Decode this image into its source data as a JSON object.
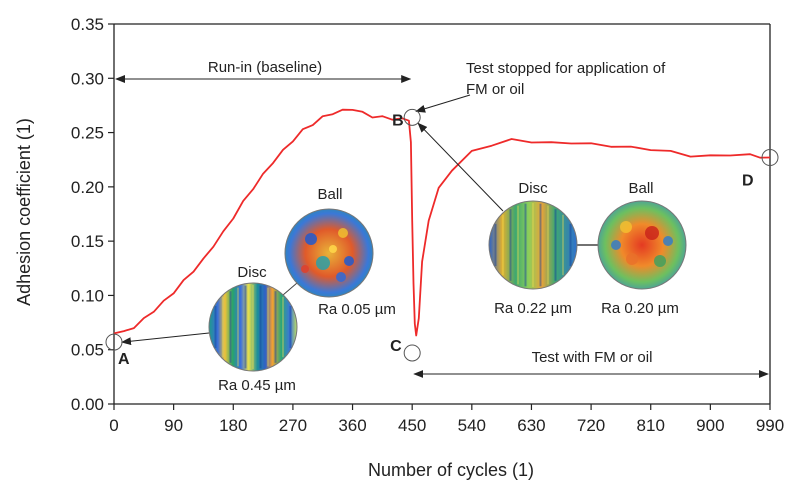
{
  "chart_data": {
    "type": "line",
    "title": "",
    "xlabel": "Number of cycles (1)",
    "ylabel": "Adhesion coefficient (1)",
    "xlim": [
      0,
      990
    ],
    "ylim": [
      0,
      0.35
    ],
    "x_ticks": [
      "0",
      "90",
      "180",
      "270",
      "360",
      "450",
      "540",
      "630",
      "720",
      "810",
      "900",
      "990"
    ],
    "y_ticks": [
      "0.00",
      "0.05",
      "0.10",
      "0.15",
      "0.20",
      "0.25",
      "0.30",
      "0.35"
    ],
    "grid": false,
    "legend": "none",
    "series": [
      {
        "color": "#ee2a2a",
        "x": [
          0,
          15,
          30,
          45,
          60,
          75,
          90,
          105,
          120,
          135,
          150,
          165,
          180,
          195,
          210,
          225,
          240,
          255,
          270,
          285,
          300,
          315,
          330,
          345,
          360,
          375,
          390,
          405,
          420,
          435,
          445,
          448,
          450,
          452,
          454,
          456,
          460,
          465,
          475,
          490,
          510,
          540,
          570,
          600,
          630,
          660,
          690,
          720,
          750,
          780,
          810,
          840,
          870,
          900,
          930,
          960,
          975,
          990
        ],
        "y": [
          0.065,
          0.066,
          0.071,
          0.078,
          0.086,
          0.094,
          0.103,
          0.113,
          0.123,
          0.133,
          0.146,
          0.158,
          0.172,
          0.186,
          0.199,
          0.211,
          0.223,
          0.233,
          0.243,
          0.252,
          0.258,
          0.264,
          0.268,
          0.27,
          0.272,
          0.268,
          0.265,
          0.264,
          0.263,
          0.262,
          0.262,
          0.24,
          0.17,
          0.11,
          0.075,
          0.062,
          0.08,
          0.13,
          0.17,
          0.198,
          0.216,
          0.232,
          0.239,
          0.243,
          0.242,
          0.24,
          0.241,
          0.239,
          0.238,
          0.236,
          0.235,
          0.232,
          0.229,
          0.228,
          0.23,
          0.229,
          0.228,
          0.227
        ]
      }
    ],
    "points": [
      {
        "label": "A",
        "x": 0,
        "y": 0.057
      },
      {
        "label": "B",
        "x": 450,
        "y": 0.264
      },
      {
        "label": "C",
        "x": 450,
        "y": 0.047
      },
      {
        "label": "D",
        "x": 990,
        "y": 0.227
      }
    ],
    "annotations": {
      "runin": "Run-in (baseline)",
      "stopped_line1": "Test stopped for application of",
      "stopped_line2": "FM or oil",
      "test_with": "Test with FM or oil",
      "disc1_title": "Disc",
      "ball1_title": "Ball",
      "disc1_ra": "Ra 0.45 µm",
      "ball1_ra": "Ra 0.05 µm",
      "disc2_title": "Disc",
      "ball2_title": "Ball",
      "disc2_ra": "Ra 0.22 µm",
      "ball2_ra": "Ra 0.20 µm"
    }
  }
}
